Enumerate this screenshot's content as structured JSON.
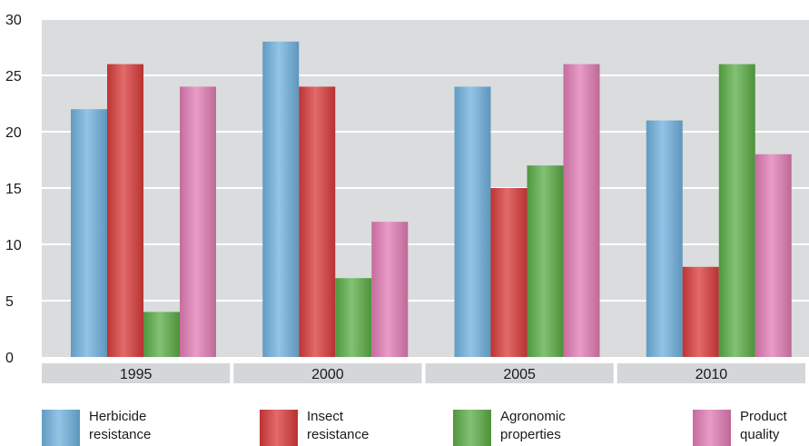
{
  "chart_data": {
    "type": "bar",
    "categories": [
      "1995",
      "2000",
      "2005",
      "2010"
    ],
    "series": [
      {
        "name": "Herbicide resistance",
        "values": [
          22,
          28,
          24,
          21
        ],
        "color": "#6fb0dd"
      },
      {
        "name": "Insect resistance",
        "values": [
          26,
          24,
          15,
          8
        ],
        "color": "#d83a3a"
      },
      {
        "name": "Agronomic properties",
        "values": [
          4,
          7,
          17,
          26
        ],
        "color": "#5aac45"
      },
      {
        "name": "Product quality",
        "values": [
          24,
          12,
          26,
          18
        ],
        "color": "#e07bb3"
      }
    ],
    "ylim": [
      0,
      30
    ],
    "yticks": [
      0,
      5,
      10,
      15,
      20,
      25,
      30
    ],
    "grid": true,
    "legend_position": "bottom"
  },
  "legend": [
    {
      "line1": "Herbicide",
      "line2": "resistance",
      "color": "#6fb0dd"
    },
    {
      "line1": "Insect",
      "line2": "resistance",
      "color": "#d83a3a"
    },
    {
      "line1": "Agronomic",
      "line2": "properties",
      "color": "#5aac45"
    },
    {
      "line1": "Product",
      "line2": "quality",
      "color": "#e07bb3"
    }
  ]
}
